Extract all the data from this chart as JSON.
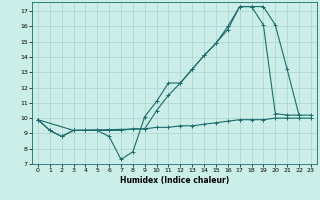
{
  "xlabel": "Humidex (Indice chaleur)",
  "bg_color": "#cceee8",
  "grid_color": "#aad4ce",
  "line_color": "#1a6b6b",
  "xlim": [
    -0.5,
    23.5
  ],
  "ylim": [
    7,
    17.6
  ],
  "xticks": [
    0,
    1,
    2,
    3,
    4,
    5,
    6,
    7,
    8,
    9,
    10,
    11,
    12,
    13,
    14,
    15,
    16,
    17,
    18,
    19,
    20,
    21,
    22,
    23
  ],
  "yticks": [
    7,
    8,
    9,
    10,
    11,
    12,
    13,
    14,
    15,
    16,
    17
  ],
  "line1_x": [
    0,
    1,
    2,
    3,
    4,
    5,
    6,
    7,
    8,
    9,
    10,
    11,
    12,
    13,
    14,
    15,
    16,
    17,
    18,
    19,
    20,
    21,
    22,
    23
  ],
  "line1_y": [
    9.9,
    9.2,
    8.8,
    9.2,
    9.2,
    9.2,
    9.2,
    9.2,
    9.3,
    9.3,
    9.4,
    9.4,
    9.5,
    9.5,
    9.6,
    9.7,
    9.8,
    9.9,
    9.9,
    9.9,
    10.0,
    10.0,
    10.0,
    10.0
  ],
  "line2_x": [
    0,
    1,
    2,
    3,
    4,
    5,
    6,
    7,
    8,
    9,
    10,
    11,
    12,
    13,
    14,
    15,
    16,
    17,
    18,
    19,
    20,
    21,
    22
  ],
  "line2_y": [
    9.9,
    9.2,
    8.8,
    9.2,
    9.2,
    9.2,
    8.8,
    7.3,
    7.8,
    10.1,
    11.1,
    12.3,
    12.3,
    13.2,
    14.1,
    14.9,
    15.8,
    17.3,
    17.3,
    16.1,
    10.3,
    10.2,
    10.2
  ],
  "line3_x": [
    0,
    3,
    9,
    10,
    11,
    12,
    13,
    14,
    15,
    16,
    17,
    18,
    19,
    20,
    21,
    22,
    23
  ],
  "line3_y": [
    9.9,
    9.2,
    9.3,
    10.5,
    11.5,
    12.3,
    13.2,
    14.1,
    14.9,
    16.0,
    17.3,
    17.3,
    17.3,
    16.1,
    13.2,
    10.2,
    10.2
  ]
}
